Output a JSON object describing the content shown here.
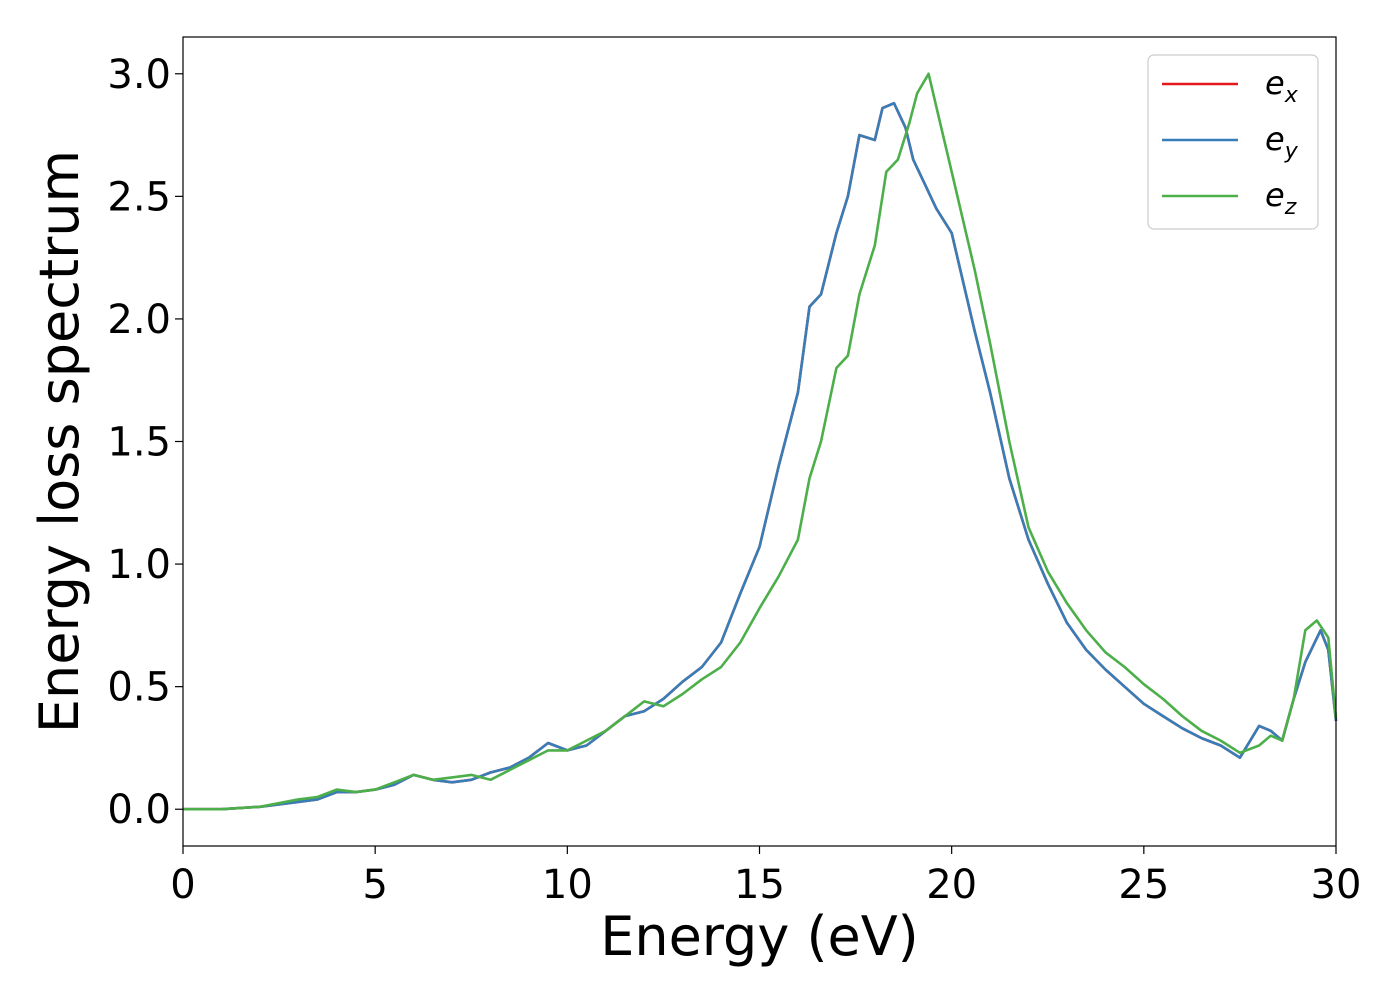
{
  "chart_data": {
    "type": "line",
    "xlabel": "Energy (eV)",
    "ylabel": "Energy loss spectrum",
    "xlim": [
      0,
      30
    ],
    "ylim": [
      -0.15,
      3.15
    ],
    "xticks": [
      0,
      5,
      10,
      15,
      20,
      25,
      30
    ],
    "xtick_labels": [
      "0",
      "5",
      "10",
      "15",
      "20",
      "25",
      "30"
    ],
    "yticks": [
      0.0,
      0.5,
      1.0,
      1.5,
      2.0,
      2.5,
      3.0
    ],
    "ytick_labels": [
      "0.0",
      "0.5",
      "1.0",
      "1.5",
      "2.0",
      "2.5",
      "3.0"
    ],
    "grid": false,
    "legend_position": "top-right",
    "series": [
      {
        "name_main": "e",
        "name_sub": "x",
        "color": "#e41a1c",
        "x": [
          0,
          1,
          2,
          3,
          3.5,
          4,
          4.5,
          5,
          5.5,
          6,
          6.5,
          7,
          7.5,
          8,
          8.5,
          9,
          9.5,
          10,
          10.5,
          11,
          11.5,
          12,
          12.5,
          13,
          13.5,
          14,
          14.5,
          15,
          15.5,
          16,
          16.3,
          16.6,
          17,
          17.3,
          17.6,
          18,
          18.2,
          18.5,
          18.8,
          19,
          19.3,
          19.6,
          20,
          20.3,
          20.6,
          21,
          21.5,
          22,
          22.5,
          23,
          23.5,
          24,
          24.5,
          25,
          25.5,
          26,
          26.5,
          27,
          27.5,
          28,
          28.3,
          28.6,
          28.9,
          29.2,
          29.6,
          29.8,
          30
        ],
        "y": [
          0,
          0,
          0.01,
          0.03,
          0.04,
          0.07,
          0.07,
          0.08,
          0.1,
          0.14,
          0.12,
          0.11,
          0.12,
          0.15,
          0.17,
          0.21,
          0.27,
          0.24,
          0.26,
          0.32,
          0.38,
          0.4,
          0.45,
          0.52,
          0.58,
          0.68,
          0.88,
          1.07,
          1.4,
          1.7,
          2.05,
          2.1,
          2.35,
          2.5,
          2.75,
          2.73,
          2.86,
          2.88,
          2.78,
          2.65,
          2.55,
          2.45,
          2.35,
          2.15,
          1.95,
          1.7,
          1.35,
          1.1,
          0.92,
          0.76,
          0.65,
          0.57,
          0.5,
          0.43,
          0.38,
          0.33,
          0.29,
          0.26,
          0.21,
          0.34,
          0.32,
          0.28,
          0.45,
          0.6,
          0.73,
          0.65,
          0.36
        ]
      },
      {
        "name_main": "e",
        "name_sub": "y",
        "color": "#377eb8",
        "x": [
          0,
          1,
          2,
          3,
          3.5,
          4,
          4.5,
          5,
          5.5,
          6,
          6.5,
          7,
          7.5,
          8,
          8.5,
          9,
          9.5,
          10,
          10.5,
          11,
          11.5,
          12,
          12.5,
          13,
          13.5,
          14,
          14.5,
          15,
          15.5,
          16,
          16.3,
          16.6,
          17,
          17.3,
          17.6,
          18,
          18.2,
          18.5,
          18.8,
          19,
          19.3,
          19.6,
          20,
          20.3,
          20.6,
          21,
          21.5,
          22,
          22.5,
          23,
          23.5,
          24,
          24.5,
          25,
          25.5,
          26,
          26.5,
          27,
          27.5,
          28,
          28.3,
          28.6,
          28.9,
          29.2,
          29.6,
          29.8,
          30
        ],
        "y": [
          0,
          0,
          0.01,
          0.03,
          0.04,
          0.07,
          0.07,
          0.08,
          0.1,
          0.14,
          0.12,
          0.11,
          0.12,
          0.15,
          0.17,
          0.21,
          0.27,
          0.24,
          0.26,
          0.32,
          0.38,
          0.4,
          0.45,
          0.52,
          0.58,
          0.68,
          0.88,
          1.07,
          1.4,
          1.7,
          2.05,
          2.1,
          2.35,
          2.5,
          2.75,
          2.73,
          2.86,
          2.88,
          2.78,
          2.65,
          2.55,
          2.45,
          2.35,
          2.15,
          1.95,
          1.7,
          1.35,
          1.1,
          0.92,
          0.76,
          0.65,
          0.57,
          0.5,
          0.43,
          0.38,
          0.33,
          0.29,
          0.26,
          0.21,
          0.34,
          0.32,
          0.28,
          0.45,
          0.6,
          0.73,
          0.65,
          0.36
        ]
      },
      {
        "name_main": "e",
        "name_sub": "z",
        "color": "#4daf4a",
        "x": [
          0,
          1,
          2,
          3,
          3.5,
          4,
          4.5,
          5,
          5.5,
          6,
          6.5,
          7,
          7.5,
          8,
          8.5,
          9,
          9.5,
          10,
          10.5,
          11,
          11.5,
          12,
          12.5,
          13,
          13.5,
          14,
          14.5,
          15,
          15.5,
          16,
          16.3,
          16.6,
          17,
          17.3,
          17.6,
          18,
          18.3,
          18.6,
          18.9,
          19.1,
          19.4,
          19.7,
          20,
          20.3,
          20.6,
          21,
          21.5,
          22,
          22.5,
          23,
          23.5,
          24,
          24.5,
          25,
          25.5,
          26,
          26.5,
          27,
          27.5,
          28,
          28.3,
          28.6,
          28.9,
          29.2,
          29.5,
          29.8,
          30
        ],
        "y": [
          0,
          0,
          0.01,
          0.04,
          0.05,
          0.08,
          0.07,
          0.08,
          0.11,
          0.14,
          0.12,
          0.13,
          0.14,
          0.12,
          0.16,
          0.2,
          0.24,
          0.24,
          0.28,
          0.32,
          0.38,
          0.44,
          0.42,
          0.47,
          0.53,
          0.58,
          0.68,
          0.82,
          0.95,
          1.1,
          1.35,
          1.5,
          1.8,
          1.85,
          2.1,
          2.3,
          2.6,
          2.65,
          2.8,
          2.92,
          3.0,
          2.8,
          2.6,
          2.4,
          2.2,
          1.9,
          1.5,
          1.15,
          0.97,
          0.84,
          0.73,
          0.64,
          0.58,
          0.51,
          0.45,
          0.38,
          0.32,
          0.28,
          0.23,
          0.26,
          0.3,
          0.28,
          0.45,
          0.73,
          0.77,
          0.7,
          0.37
        ]
      }
    ]
  }
}
